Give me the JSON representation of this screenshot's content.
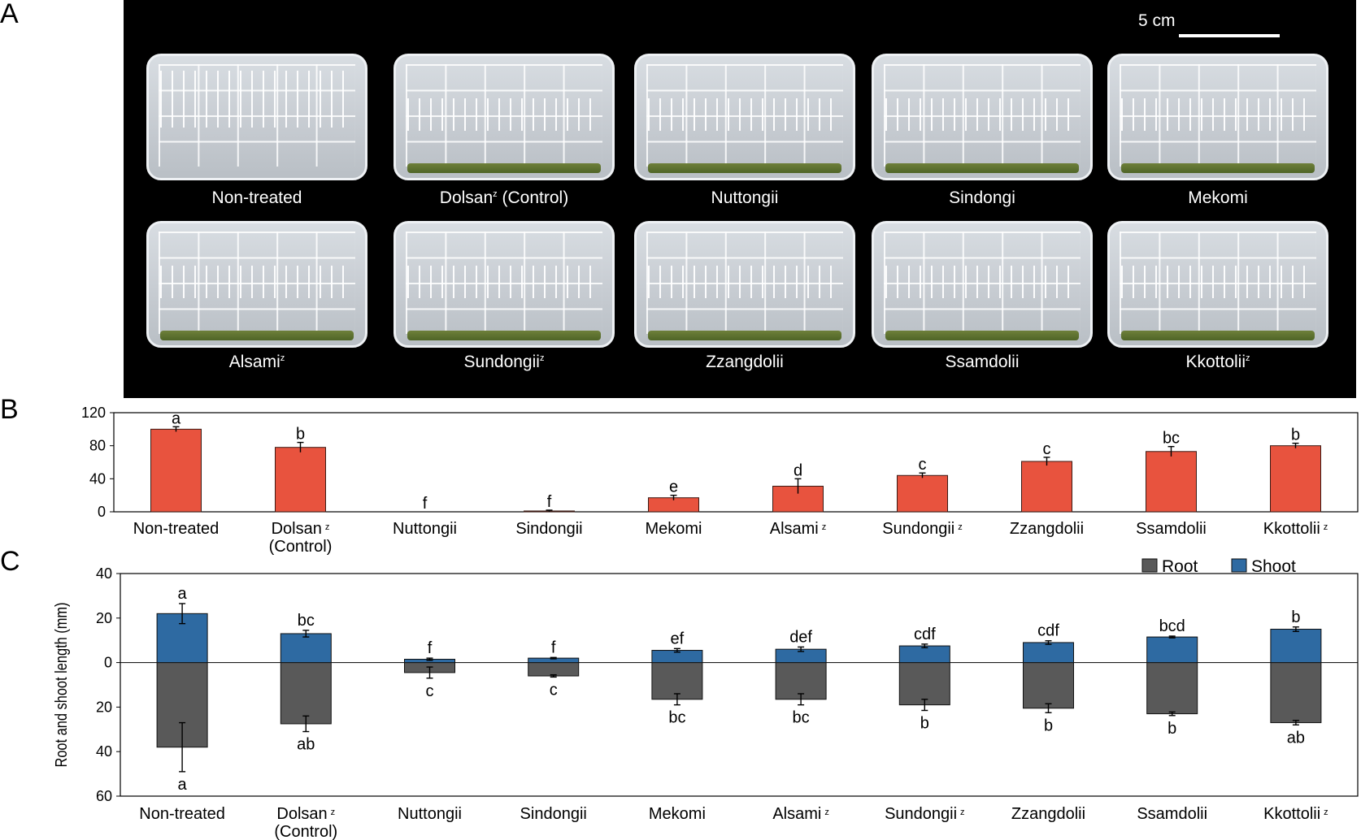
{
  "panel_a": {
    "letter": "A",
    "scale_bar": "5 cm",
    "dishes": [
      {
        "label": "Non-treated",
        "sup": ""
      },
      {
        "label": "Dolsan",
        "sup": "z",
        "suffix": " (Control)"
      },
      {
        "label": "Nuttongii",
        "sup": ""
      },
      {
        "label": "Sindongi",
        "sup": ""
      },
      {
        "label": "Mekomi",
        "sup": ""
      },
      {
        "label": "Alsami",
        "sup": "z"
      },
      {
        "label": "Sundongii",
        "sup": "z"
      },
      {
        "label": "Zzangdolii",
        "sup": ""
      },
      {
        "label": "Ssamdolii",
        "sup": ""
      },
      {
        "label": "Kkottolii",
        "sup": "z"
      }
    ]
  },
  "chart_data": [
    {
      "panel": "B",
      "type": "bar",
      "categories": [
        "Non-treated",
        "Dolsan",
        "Nuttongii",
        "Sindongii",
        "Mekomi",
        "Alsami",
        "Sundongii",
        "Zzangdolii",
        "Ssamdolii",
        "Kkottolii"
      ],
      "category_sup": [
        "",
        "z",
        "",
        "",
        "",
        "z",
        "z",
        "",
        "",
        "z"
      ],
      "category_sub": [
        "",
        "(Control)",
        "",
        "",
        "",
        "",
        "",
        "",
        "",
        ""
      ],
      "values": [
        100,
        78,
        0,
        1,
        17,
        31,
        44,
        61,
        73,
        80
      ],
      "errors": [
        3,
        6,
        0,
        1,
        3,
        9,
        3,
        5,
        6,
        3
      ],
      "letters": [
        "a",
        "b",
        "f",
        "f",
        "e",
        "d",
        "c",
        "c",
        "bc",
        "b"
      ],
      "ylim": [
        0,
        120
      ],
      "yticks": [
        0,
        40,
        80,
        120
      ],
      "color": "#e8533e",
      "grid": false
    },
    {
      "panel": "C",
      "type": "bar",
      "ylabel": "Root and shoot length (mm)",
      "categories": [
        "Non-treated",
        "Dolsan",
        "Nuttongii",
        "Sindongii",
        "Mekomi",
        "Alsami",
        "Sundongii",
        "Zzangdolii",
        "Ssamdolii",
        "Kkottolii"
      ],
      "category_sup": [
        "",
        "z",
        "",
        "",
        "",
        "z",
        "z",
        "",
        "",
        "z"
      ],
      "category_sub": [
        "",
        "(Control)",
        "",
        "",
        "",
        "",
        "",
        "",
        "",
        ""
      ],
      "series": [
        {
          "name": "Root",
          "color": "#595959",
          "values": [
            -38,
            -27.5,
            -4.5,
            -6,
            -16.5,
            -16.5,
            -19,
            -20.5,
            -23,
            -27
          ],
          "errors": [
            11,
            3.5,
            2.5,
            0.5,
            2.5,
            2.5,
            2.5,
            2,
            0.8,
            1
          ],
          "letters": [
            "a",
            "ab",
            "c",
            "c",
            "bc",
            "bc",
            "b",
            "b",
            "b",
            "ab"
          ]
        },
        {
          "name": "Shoot",
          "color": "#2e6aa2",
          "values": [
            22,
            13,
            1.5,
            2,
            5.5,
            6,
            7.5,
            9,
            11.5,
            15
          ],
          "errors": [
            4.5,
            1.5,
            0.5,
            0.3,
            0.8,
            1,
            0.8,
            0.8,
            0.4,
            1
          ],
          "letters": [
            "a",
            "bc",
            "f",
            "f",
            "ef",
            "def",
            "cdf",
            "cdf",
            "bcd",
            "b"
          ]
        }
      ],
      "ylim": [
        -60,
        40
      ],
      "yticks": [
        40,
        20,
        0,
        -20,
        -40,
        -60
      ],
      "ytick_labels": [
        "40",
        "20",
        "0",
        "20",
        "40",
        "60"
      ],
      "legend": "top-right",
      "grid": false
    }
  ]
}
